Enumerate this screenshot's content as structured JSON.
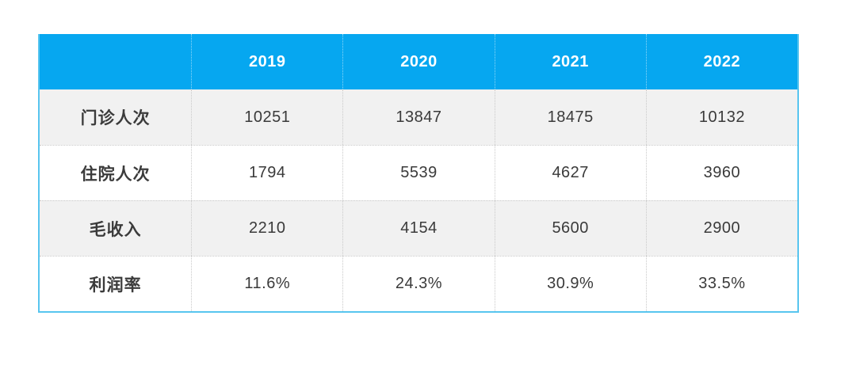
{
  "table": {
    "columns": [
      "",
      "2019",
      "2020",
      "2021",
      "2022"
    ],
    "rows": [
      {
        "label": "门诊人次",
        "values": [
          "10251",
          "13847",
          "18475",
          "10132"
        ]
      },
      {
        "label": "住院人次",
        "values": [
          "1794",
          "5539",
          "4627",
          "3960"
        ]
      },
      {
        "label": "毛收入",
        "values": [
          "2210",
          "4154",
          "5600",
          "2900"
        ]
      },
      {
        "label": "利润率",
        "values": [
          "11.6%",
          "24.3%",
          "30.9%",
          "33.5%"
        ]
      }
    ]
  },
  "chart_data": {
    "type": "table",
    "categories": [
      "2019",
      "2020",
      "2021",
      "2022"
    ],
    "series": [
      {
        "name": "门诊人次",
        "values": [
          10251,
          13847,
          18475,
          10132
        ]
      },
      {
        "name": "住院人次",
        "values": [
          1794,
          5539,
          4627,
          3960
        ]
      },
      {
        "name": "毛收入",
        "values": [
          2210,
          4154,
          5600,
          2900
        ]
      },
      {
        "name": "利润率",
        "values": [
          "11.6%",
          "24.3%",
          "30.9%",
          "33.5%"
        ]
      }
    ],
    "title": "",
    "layout_hints": {
      "header_position": "top",
      "alternating_rows": true,
      "grid": "dotted"
    }
  },
  "colors": {
    "header_bg": "#06a7f0",
    "header_text": "#ffffff",
    "border": "#58c5ef",
    "row_alt_bg": "#f1f1f1",
    "row_bg": "#ffffff",
    "cell_text": "#3a3a3a",
    "divider_dotted": "#c9c9c9"
  }
}
